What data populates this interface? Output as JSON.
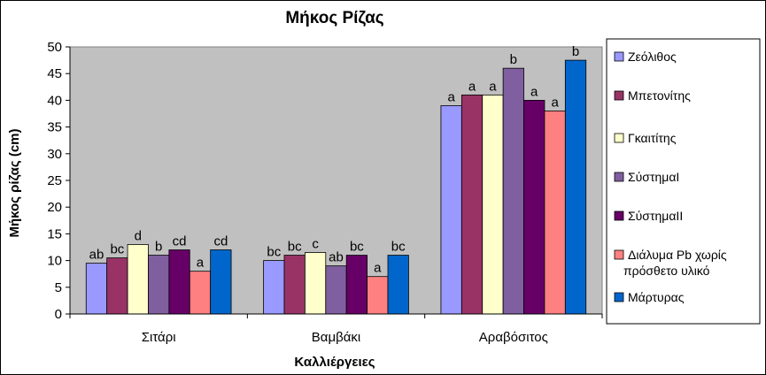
{
  "chart_data": {
    "type": "bar",
    "title": "Μήκος Ρίζας",
    "xlabel": "Καλλιέργειες",
    "ylabel": "Μήκος ρίζας (cm)",
    "ylim": [
      0,
      50
    ],
    "yticks": [
      0,
      5,
      10,
      15,
      20,
      25,
      30,
      35,
      40,
      45,
      50
    ],
    "grid": false,
    "legend_position": "right",
    "categories": [
      "Σιτάρι",
      "Βαμβάκι",
      "Αραβόσιτος"
    ],
    "series": [
      {
        "name": "Ζεόλιθος",
        "color": "#9999ff",
        "values": [
          9.5,
          10,
          39
        ],
        "labels": [
          "ab",
          "bc",
          "a"
        ]
      },
      {
        "name": "Μπετονίτης",
        "color": "#993366",
        "values": [
          10.5,
          11,
          41
        ],
        "labels": [
          "bc",
          "bc",
          "a"
        ]
      },
      {
        "name": "Γκαιτίτης",
        "color": "#ffffcc",
        "values": [
          13,
          11.5,
          41
        ],
        "labels": [
          "d",
          "c",
          "a"
        ]
      },
      {
        "name": "ΣύστημαI",
        "color": "#7f5f9f",
        "values": [
          11,
          9,
          46
        ],
        "labels": [
          "b",
          "ab",
          "b"
        ]
      },
      {
        "name": "ΣύστημαII",
        "color": "#660066",
        "values": [
          12,
          11,
          40
        ],
        "labels": [
          "cd",
          "bc",
          "a"
        ]
      },
      {
        "name": "Διάλυμα Pb χωρίς πρόσθετο υλικό",
        "color": "#ff8080",
        "values": [
          8,
          7,
          38
        ],
        "labels": [
          "a",
          "a",
          "a"
        ]
      },
      {
        "name": "Μάρτυρας",
        "color": "#0066cc",
        "values": [
          12,
          11,
          47.5
        ],
        "labels": [
          "cd",
          "bc",
          "b"
        ]
      }
    ]
  }
}
